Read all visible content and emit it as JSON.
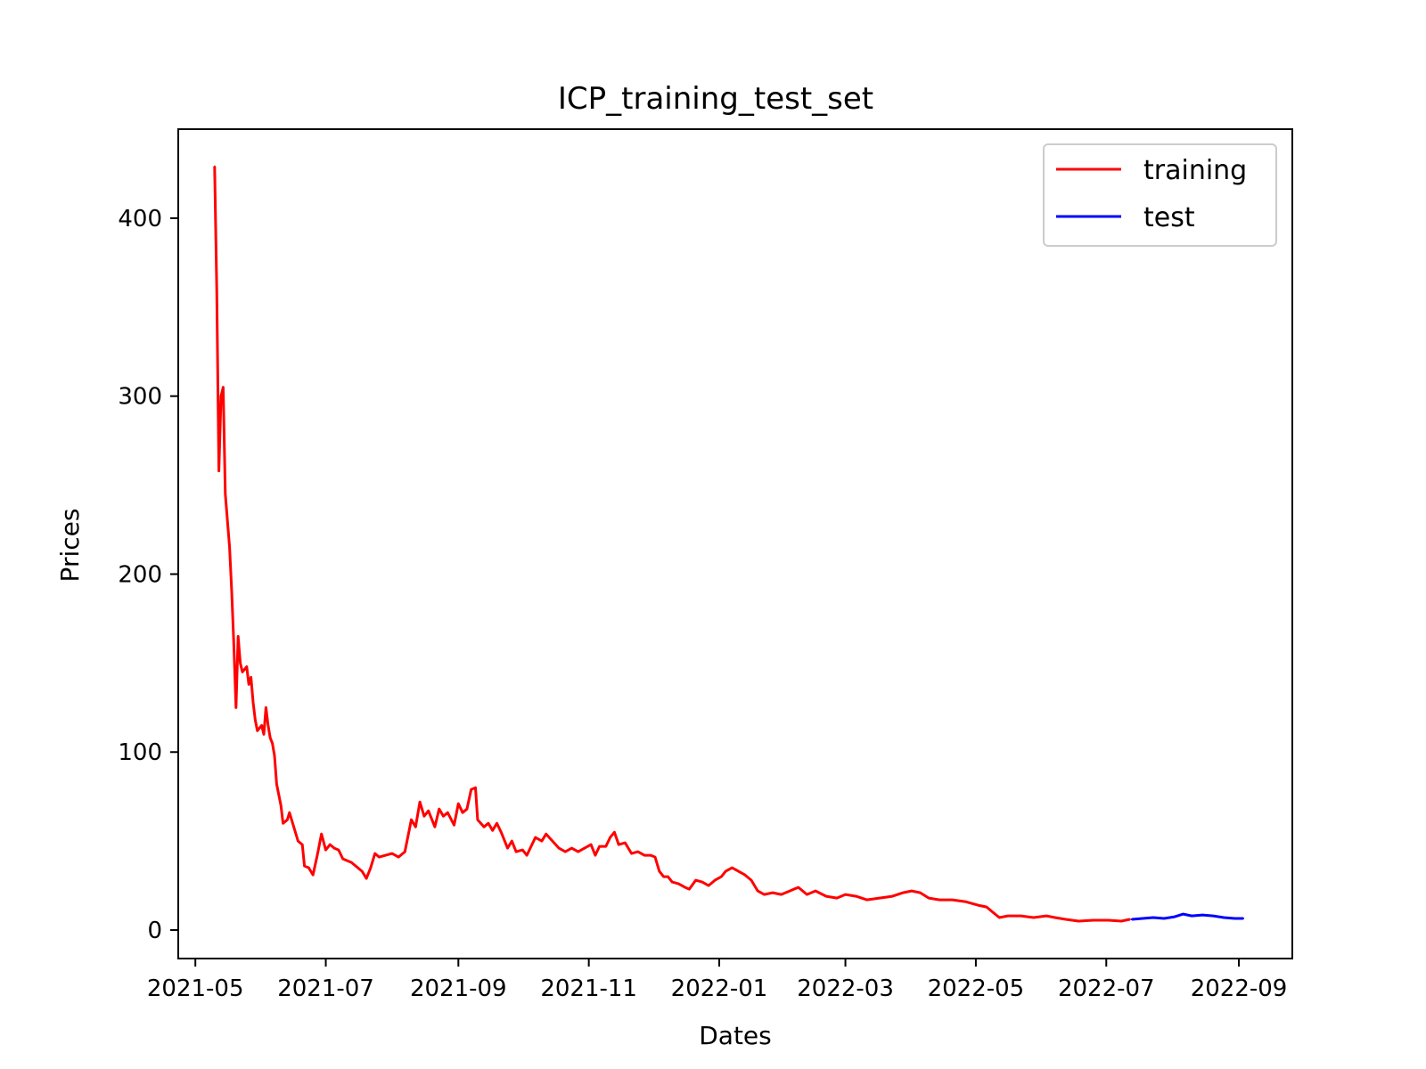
{
  "chart_data": {
    "type": "line",
    "title": "ICP_training_test_set",
    "xlabel": "Dates",
    "ylabel": "Prices",
    "xlim": [
      "2021-04-23",
      "2022-09-26"
    ],
    "ylim": [
      -16,
      450
    ],
    "x_ticks": [
      "2021-05",
      "2021-07",
      "2021-09",
      "2021-11",
      "2022-01",
      "2022-03",
      "2022-05",
      "2022-07",
      "2022-09"
    ],
    "y_ticks": [
      0,
      100,
      200,
      300,
      400
    ],
    "grid": false,
    "legend": {
      "position": "top-right"
    },
    "series": [
      {
        "name": "training",
        "color": "#ff0000",
        "points": [
          [
            "2021-05-10",
            429
          ],
          [
            "2021-05-11",
            360
          ],
          [
            "2021-05-12",
            258
          ],
          [
            "2021-05-13",
            300
          ],
          [
            "2021-05-14",
            305
          ],
          [
            "2021-05-15",
            245
          ],
          [
            "2021-05-17",
            215
          ],
          [
            "2021-05-18",
            190
          ],
          [
            "2021-05-19",
            160
          ],
          [
            "2021-05-20",
            125
          ],
          [
            "2021-05-21",
            165
          ],
          [
            "2021-05-22",
            150
          ],
          [
            "2021-05-23",
            145
          ],
          [
            "2021-05-25",
            148
          ],
          [
            "2021-05-26",
            138
          ],
          [
            "2021-05-27",
            142
          ],
          [
            "2021-05-28",
            128
          ],
          [
            "2021-05-29",
            118
          ],
          [
            "2021-05-30",
            112
          ],
          [
            "2021-06-01",
            115
          ],
          [
            "2021-06-02",
            110
          ],
          [
            "2021-06-03",
            125
          ],
          [
            "2021-06-04",
            115
          ],
          [
            "2021-06-05",
            108
          ],
          [
            "2021-06-06",
            105
          ],
          [
            "2021-06-07",
            98
          ],
          [
            "2021-06-08",
            82
          ],
          [
            "2021-06-10",
            70
          ],
          [
            "2021-06-11",
            60
          ],
          [
            "2021-06-13",
            62
          ],
          [
            "2021-06-14",
            66
          ],
          [
            "2021-06-16",
            58
          ],
          [
            "2021-06-18",
            50
          ],
          [
            "2021-06-20",
            48
          ],
          [
            "2021-06-21",
            36
          ],
          [
            "2021-06-23",
            35
          ],
          [
            "2021-06-25",
            31
          ],
          [
            "2021-06-27",
            42
          ],
          [
            "2021-06-29",
            54
          ],
          [
            "2021-07-01",
            45
          ],
          [
            "2021-07-03",
            48
          ],
          [
            "2021-07-05",
            46
          ],
          [
            "2021-07-07",
            45
          ],
          [
            "2021-07-09",
            40
          ],
          [
            "2021-07-11",
            39
          ],
          [
            "2021-07-13",
            38
          ],
          [
            "2021-07-15",
            36
          ],
          [
            "2021-07-18",
            33
          ],
          [
            "2021-07-20",
            29
          ],
          [
            "2021-07-22",
            35
          ],
          [
            "2021-07-24",
            43
          ],
          [
            "2021-07-26",
            41
          ],
          [
            "2021-07-29",
            42
          ],
          [
            "2021-08-01",
            43
          ],
          [
            "2021-08-04",
            41
          ],
          [
            "2021-08-07",
            44
          ],
          [
            "2021-08-10",
            62
          ],
          [
            "2021-08-12",
            58
          ],
          [
            "2021-08-14",
            72
          ],
          [
            "2021-08-16",
            64
          ],
          [
            "2021-08-18",
            67
          ],
          [
            "2021-08-21",
            58
          ],
          [
            "2021-08-23",
            68
          ],
          [
            "2021-08-25",
            64
          ],
          [
            "2021-08-27",
            66
          ],
          [
            "2021-08-30",
            59
          ],
          [
            "2021-09-01",
            71
          ],
          [
            "2021-09-03",
            66
          ],
          [
            "2021-09-05",
            68
          ],
          [
            "2021-09-07",
            79
          ],
          [
            "2021-09-09",
            80
          ],
          [
            "2021-09-10",
            62
          ],
          [
            "2021-09-13",
            58
          ],
          [
            "2021-09-15",
            60
          ],
          [
            "2021-09-17",
            56
          ],
          [
            "2021-09-19",
            60
          ],
          [
            "2021-09-21",
            55
          ],
          [
            "2021-09-24",
            46
          ],
          [
            "2021-09-26",
            50
          ],
          [
            "2021-09-28",
            44
          ],
          [
            "2021-10-01",
            45
          ],
          [
            "2021-10-03",
            42
          ],
          [
            "2021-10-05",
            47
          ],
          [
            "2021-10-07",
            52
          ],
          [
            "2021-10-10",
            50
          ],
          [
            "2021-10-12",
            54
          ],
          [
            "2021-10-15",
            50
          ],
          [
            "2021-10-18",
            46
          ],
          [
            "2021-10-21",
            44
          ],
          [
            "2021-10-24",
            46
          ],
          [
            "2021-10-27",
            44
          ],
          [
            "2021-10-30",
            46
          ],
          [
            "2021-11-02",
            48
          ],
          [
            "2021-11-04",
            42
          ],
          [
            "2021-11-06",
            47
          ],
          [
            "2021-11-09",
            47
          ],
          [
            "2021-11-11",
            52
          ],
          [
            "2021-11-13",
            55
          ],
          [
            "2021-11-15",
            48
          ],
          [
            "2021-11-18",
            49
          ],
          [
            "2021-11-21",
            43
          ],
          [
            "2021-11-24",
            44
          ],
          [
            "2021-11-27",
            42
          ],
          [
            "2021-11-30",
            42
          ],
          [
            "2021-12-02",
            41
          ],
          [
            "2021-12-04",
            33
          ],
          [
            "2021-12-06",
            30
          ],
          [
            "2021-12-08",
            30
          ],
          [
            "2021-12-10",
            27
          ],
          [
            "2021-12-13",
            26
          ],
          [
            "2021-12-16",
            24
          ],
          [
            "2021-12-18",
            23
          ],
          [
            "2021-12-21",
            28
          ],
          [
            "2021-12-24",
            27
          ],
          [
            "2021-12-27",
            25
          ],
          [
            "2021-12-30",
            28
          ],
          [
            "2022-01-02",
            30
          ],
          [
            "2022-01-04",
            33
          ],
          [
            "2022-01-07",
            35
          ],
          [
            "2022-01-10",
            33
          ],
          [
            "2022-01-13",
            31
          ],
          [
            "2022-01-16",
            28
          ],
          [
            "2022-01-19",
            22
          ],
          [
            "2022-01-22",
            20
          ],
          [
            "2022-01-26",
            21
          ],
          [
            "2022-01-30",
            20
          ],
          [
            "2022-02-03",
            22
          ],
          [
            "2022-02-07",
            24
          ],
          [
            "2022-02-11",
            20
          ],
          [
            "2022-02-15",
            22
          ],
          [
            "2022-02-20",
            19
          ],
          [
            "2022-02-25",
            18
          ],
          [
            "2022-03-01",
            20
          ],
          [
            "2022-03-06",
            19
          ],
          [
            "2022-03-11",
            17
          ],
          [
            "2022-03-17",
            18
          ],
          [
            "2022-03-23",
            19
          ],
          [
            "2022-03-28",
            21
          ],
          [
            "2022-04-01",
            22
          ],
          [
            "2022-04-05",
            21
          ],
          [
            "2022-04-09",
            18
          ],
          [
            "2022-04-14",
            17
          ],
          [
            "2022-04-20",
            17
          ],
          [
            "2022-04-26",
            16
          ],
          [
            "2022-05-02",
            14
          ],
          [
            "2022-05-06",
            13
          ],
          [
            "2022-05-09",
            10
          ],
          [
            "2022-05-12",
            7
          ],
          [
            "2022-05-16",
            8
          ],
          [
            "2022-05-22",
            8
          ],
          [
            "2022-05-28",
            7
          ],
          [
            "2022-06-03",
            8
          ],
          [
            "2022-06-07",
            7
          ],
          [
            "2022-06-12",
            6
          ],
          [
            "2022-06-18",
            5
          ],
          [
            "2022-06-25",
            5.5
          ],
          [
            "2022-07-02",
            5.5
          ],
          [
            "2022-07-08",
            5
          ],
          [
            "2022-07-12",
            6
          ]
        ]
      },
      {
        "name": "test",
        "color": "#0000ff",
        "points": [
          [
            "2022-07-13",
            6
          ],
          [
            "2022-07-18",
            6.5
          ],
          [
            "2022-07-23",
            7
          ],
          [
            "2022-07-28",
            6.5
          ],
          [
            "2022-08-02",
            7.5
          ],
          [
            "2022-08-06",
            9
          ],
          [
            "2022-08-10",
            8
          ],
          [
            "2022-08-15",
            8.5
          ],
          [
            "2022-08-20",
            8
          ],
          [
            "2022-08-25",
            7
          ],
          [
            "2022-08-30",
            6.5
          ],
          [
            "2022-09-03",
            6.5
          ]
        ]
      }
    ]
  }
}
